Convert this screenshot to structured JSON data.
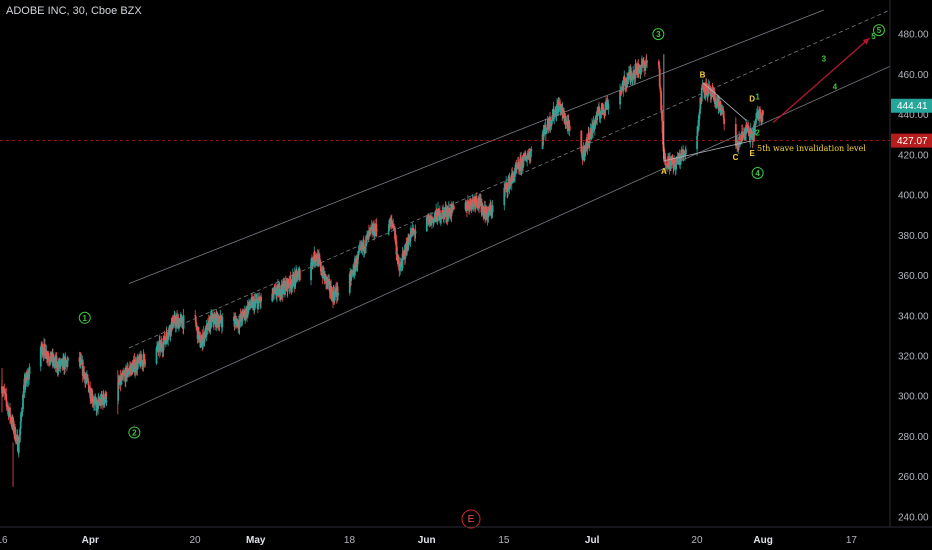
{
  "header": {
    "title": "ADOBE INC, 30, Cboe BZX"
  },
  "colors": {
    "up": "#26a69a",
    "down": "#ef5350",
    "channel": "#787b86",
    "wave_green": "#3ec53e",
    "wave_yellow": "#f7d23a",
    "arrow": "#b2182b",
    "price_badge": "#26a69a",
    "invalidation": "#b71c1c"
  },
  "price_axis": {
    "ticks": [
      "480.00",
      "460.00",
      "440.00",
      "420.00",
      "400.00",
      "380.00",
      "360.00",
      "340.00",
      "320.00",
      "300.00",
      "280.00",
      "260.00",
      "240.00"
    ],
    "current_price": "444.41",
    "invalidation_price": "427.07"
  },
  "time_axis": {
    "ticks": [
      {
        "label": "16",
        "bold": false
      },
      {
        "label": "Apr",
        "bold": true
      },
      {
        "label": "20",
        "bold": false
      },
      {
        "label": "May",
        "bold": true
      },
      {
        "label": "18",
        "bold": false
      },
      {
        "label": "Jun",
        "bold": true
      },
      {
        "label": "15",
        "bold": false
      },
      {
        "label": "Jul",
        "bold": true
      },
      {
        "label": "20",
        "bold": false
      },
      {
        "label": "Aug",
        "bold": true
      },
      {
        "label": "17",
        "bold": false
      }
    ]
  },
  "annotations": {
    "invalidation_text": "5th wave invalidation level",
    "event_marker": "E"
  },
  "chart_data": {
    "type": "candlestick",
    "title": "ADOBE INC, 30, Cboe BZX",
    "ylim": [
      235,
      492
    ],
    "x_start": "2020-03-16",
    "x_end": "2020-08-24",
    "close_path": [
      [
        "2020-03-16",
        305
      ],
      [
        "2020-03-18",
        285
      ],
      [
        "2020-03-19",
        275
      ],
      [
        "2020-03-20",
        305
      ],
      [
        "2020-03-23",
        325
      ],
      [
        "2020-03-26",
        315
      ],
      [
        "2020-03-30",
        318
      ],
      [
        "2020-04-02",
        295
      ],
      [
        "2020-04-06",
        305
      ],
      [
        "2020-04-08",
        313
      ],
      [
        "2020-04-14",
        325
      ],
      [
        "2020-04-16",
        337
      ],
      [
        "2020-04-20",
        337
      ],
      [
        "2020-04-21",
        326
      ],
      [
        "2020-04-23",
        338
      ],
      [
        "2020-04-28",
        337
      ],
      [
        "2020-04-30",
        345
      ],
      [
        "2020-05-04",
        350
      ],
      [
        "2020-05-08",
        358
      ],
      [
        "2020-05-12",
        370
      ],
      [
        "2020-05-13",
        362
      ],
      [
        "2020-05-15",
        350
      ],
      [
        "2020-05-18",
        357
      ],
      [
        "2020-05-20",
        372
      ],
      [
        "2020-05-22",
        382
      ],
      [
        "2020-05-26",
        386
      ],
      [
        "2020-05-27",
        362
      ],
      [
        "2020-05-29",
        380
      ],
      [
        "2020-06-03",
        390
      ],
      [
        "2020-06-08",
        394
      ],
      [
        "2020-06-10",
        398
      ],
      [
        "2020-06-12",
        390
      ],
      [
        "2020-06-15",
        402
      ],
      [
        "2020-06-18",
        415
      ],
      [
        "2020-06-22",
        430
      ],
      [
        "2020-06-25",
        445
      ],
      [
        "2020-06-29",
        418
      ],
      [
        "2020-07-02",
        440
      ],
      [
        "2020-07-06",
        452
      ],
      [
        "2020-07-08",
        460
      ],
      [
        "2020-07-13",
        470
      ],
      [
        "2020-07-14",
        418
      ],
      [
        "2020-07-16",
        415
      ],
      [
        "2020-07-20",
        430
      ],
      [
        "2020-07-21",
        455
      ],
      [
        "2020-07-24",
        445
      ],
      [
        "2020-07-27",
        423
      ],
      [
        "2020-07-29",
        433
      ],
      [
        "2020-07-30",
        428
      ],
      [
        "2020-07-31",
        440
      ],
      [
        "2020-08-03",
        444.41
      ]
    ],
    "wave_labels": [
      {
        "text": "1",
        "date": "2020-03-31",
        "price": 339,
        "style": "circle",
        "color": "green"
      },
      {
        "text": "2",
        "date": "2020-04-09",
        "price": 282,
        "style": "circle",
        "color": "green"
      },
      {
        "text": "3",
        "date": "2020-07-13",
        "price": 480,
        "style": "circle",
        "color": "green"
      },
      {
        "text": "4",
        "date": "2020-07-31",
        "price": 411,
        "style": "circle",
        "color": "green"
      },
      {
        "text": "5",
        "date": "2020-08-22",
        "price": 482,
        "style": "circle",
        "color": "green"
      },
      {
        "text": "A",
        "date": "2020-07-14",
        "price": 412,
        "style": "text",
        "color": "yellow"
      },
      {
        "text": "B",
        "date": "2020-07-21",
        "price": 460,
        "style": "text",
        "color": "yellow"
      },
      {
        "text": "C",
        "date": "2020-07-27",
        "price": 419,
        "style": "text",
        "color": "yellow"
      },
      {
        "text": "D",
        "date": "2020-07-30",
        "price": 448,
        "style": "text",
        "color": "yellow"
      },
      {
        "text": "E",
        "date": "2020-07-30",
        "price": 421,
        "style": "text",
        "color": "yellow"
      },
      {
        "text": "1",
        "date": "2020-07-31",
        "price": 449,
        "style": "text",
        "color": "green"
      },
      {
        "text": "2",
        "date": "2020-07-31",
        "price": 431,
        "style": "text",
        "color": "green"
      },
      {
        "text": "3",
        "date": "2020-08-12",
        "price": 468,
        "style": "text",
        "color": "green"
      },
      {
        "text": "4",
        "date": "2020-08-14",
        "price": 454,
        "style": "text",
        "color": "green"
      },
      {
        "text": "5",
        "date": "2020-08-21",
        "price": 479,
        "style": "text",
        "color": "green"
      }
    ]
  }
}
